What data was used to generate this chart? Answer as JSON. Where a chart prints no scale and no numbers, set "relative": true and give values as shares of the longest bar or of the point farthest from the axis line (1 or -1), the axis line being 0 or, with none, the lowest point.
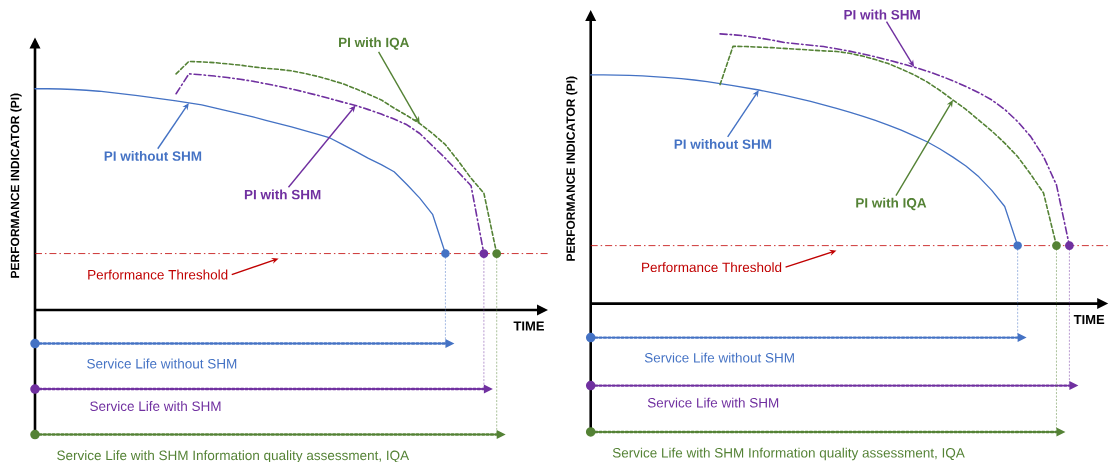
{
  "chart_data": [
    {
      "type": "line",
      "relative": true,
      "xlabel": "TIME",
      "ylabel": "PERFORMANCE INDICATOR (PI)",
      "categories": [
        null,
        null,
        null,
        null,
        null,
        null,
        null,
        null,
        null,
        null,
        null,
        null,
        null,
        null,
        null,
        null,
        null,
        null,
        null,
        null,
        null,
        null,
        null,
        null,
        null,
        null,
        null,
        null,
        null,
        null,
        null,
        null,
        null,
        null,
        null,
        null,
        null,
        null,
        null,
        null,
        null
      ],
      "series": [
        {
          "color": "#4472c4",
          "line_style": "solid",
          "values": [
            0.89,
            0.89,
            0.889,
            0.887,
            0.884,
            0.88,
            0.874,
            0.868,
            0.862,
            0.855,
            0.848,
            0.841,
            0.833,
            0.825,
            0.813,
            0.801,
            0.789,
            0.777,
            0.763,
            0.75,
            0.737,
            0.722,
            0.707,
            0.692,
            0.665,
            0.638,
            0.61,
            0.585,
            0.556,
            0.505,
            0.45,
            0.385,
            0.227,
            null,
            null,
            null,
            null,
            null,
            null,
            null,
            null
          ]
        },
        {
          "color": "#7030a0",
          "line_style": "dashdot",
          "values": [
            null,
            null,
            null,
            null,
            null,
            null,
            null,
            null,
            null,
            null,
            null,
            0.87,
            0.95,
            0.946,
            0.941,
            0.935,
            0.928,
            0.92,
            0.91,
            0.9,
            0.889,
            0.877,
            0.864,
            0.85,
            0.836,
            0.823,
            0.806,
            0.788,
            0.768,
            0.745,
            0.71,
            0.66,
            0.61,
            0.555,
            0.5,
            0.227,
            null,
            null,
            null,
            null,
            null
          ]
        },
        {
          "color": "#548235",
          "line_style": "dashed",
          "values": [
            null,
            null,
            null,
            null,
            null,
            null,
            null,
            null,
            null,
            null,
            null,
            0.95,
            1,
            0.998,
            0.995,
            0.99,
            0.985,
            0.978,
            0.972,
            0.968,
            0.962,
            0.952,
            0.94,
            0.926,
            0.91,
            0.89,
            0.868,
            0.845,
            0.812,
            0.782,
            0.75,
            0.71,
            0.665,
            0.6,
            0.53,
            0.47,
            0.227,
            null,
            null,
            null,
            null
          ]
        },
        {
          "name": "Service Life without SHM",
          "color": "#4472c4",
          "line_style": "dotted",
          "values": [
            -0.135,
            -0.135,
            -0.135,
            -0.135,
            -0.135,
            -0.135,
            -0.135,
            -0.135,
            -0.135,
            -0.135,
            -0.135,
            -0.135,
            -0.135,
            -0.135,
            -0.135,
            -0.135,
            -0.135,
            -0.135,
            -0.135,
            -0.135,
            -0.135,
            -0.135,
            -0.135,
            -0.135,
            -0.135,
            -0.135,
            -0.135,
            -0.135,
            -0.135,
            -0.135,
            -0.135,
            -0.135,
            -0.135,
            null,
            null,
            null,
            null,
            null,
            null,
            null,
            null
          ]
        },
        {
          "name": "Service Life with SHM",
          "color": "#7030a0",
          "line_style": "dotted",
          "values": [
            -0.318,
            -0.318,
            -0.318,
            -0.318,
            -0.318,
            -0.318,
            -0.318,
            -0.318,
            -0.318,
            -0.318,
            -0.318,
            -0.318,
            -0.318,
            -0.318,
            -0.318,
            -0.318,
            -0.318,
            -0.318,
            -0.318,
            -0.318,
            -0.318,
            -0.318,
            -0.318,
            -0.318,
            -0.318,
            -0.318,
            -0.318,
            -0.318,
            -0.318,
            -0.318,
            -0.318,
            -0.318,
            -0.318,
            -0.318,
            -0.318,
            -0.318,
            null,
            null,
            null,
            null,
            null
          ]
        },
        {
          "name": "Service Life with SHM Information quality assessment, IQA",
          "color": "#548235",
          "line_style": "dotted",
          "values": [
            -0.501,
            -0.501,
            -0.501,
            -0.501,
            -0.501,
            -0.501,
            -0.501,
            -0.501,
            -0.501,
            -0.501,
            -0.501,
            -0.501,
            -0.501,
            -0.501,
            -0.501,
            -0.501,
            -0.501,
            -0.501,
            -0.501,
            -0.501,
            -0.501,
            -0.501,
            -0.501,
            -0.501,
            -0.501,
            -0.501,
            -0.501,
            -0.501,
            -0.501,
            -0.501,
            -0.501,
            -0.501,
            -0.501,
            -0.501,
            -0.501,
            -0.501,
            -0.501,
            null,
            null,
            null,
            null
          ]
        }
      ],
      "annotations": [
        "PI without SHM",
        "PI with SHM",
        "PI with IQA"
      ],
      "ref_lines": [
        {
          "axis": "y",
          "value": 0.227,
          "label": "Performance Threshold",
          "color": "#c00000",
          "line_style": "dashdot"
        }
      ]
    },
    {
      "type": "line",
      "relative": true,
      "xlabel": "TIME",
      "ylabel": "PERFORMANCE INDICATOR (PI)",
      "categories": [
        null,
        null,
        null,
        null,
        null,
        null,
        null,
        null,
        null,
        null,
        null,
        null,
        null,
        null,
        null,
        null,
        null,
        null,
        null,
        null,
        null,
        null,
        null,
        null,
        null,
        null,
        null,
        null,
        null,
        null,
        null,
        null,
        null,
        null,
        null,
        null,
        null,
        null,
        null,
        null,
        null
      ],
      "series": [
        {
          "color": "#4472c4",
          "line_style": "solid",
          "values": [
            0.848,
            0.848,
            0.847,
            0.846,
            0.844,
            0.841,
            0.838,
            0.834,
            0.829,
            0.823,
            0.816,
            0.808,
            0.8,
            0.792,
            0.782,
            0.772,
            0.761,
            0.75,
            0.737,
            0.724,
            0.71,
            0.695,
            0.679,
            0.662,
            0.643,
            0.622,
            0.6,
            0.573,
            0.543,
            0.51,
            0.47,
            0.42,
            0.36,
            0.215,
            null,
            null,
            null,
            null,
            null,
            null,
            null
          ]
        },
        {
          "color": "#7030a0",
          "line_style": "dashdot",
          "values": [
            null,
            null,
            null,
            null,
            null,
            null,
            null,
            null,
            null,
            null,
            1,
            0.997,
            0.992,
            0.985,
            0.977,
            0.968,
            0.963,
            0.958,
            0.953,
            0.945,
            0.936,
            0.926,
            0.915,
            0.903,
            0.89,
            0.877,
            0.862,
            0.845,
            0.826,
            0.805,
            0.782,
            0.755,
            0.72,
            0.675,
            0.62,
            0.545,
            0.44,
            0.215,
            null,
            null,
            null
          ]
        },
        {
          "color": "#548235",
          "line_style": "dashed",
          "values": [
            null,
            null,
            null,
            null,
            null,
            null,
            null,
            null,
            null,
            null,
            0.812,
            0.954,
            0.953,
            0.951,
            0.949,
            0.946,
            0.943,
            0.94,
            0.937,
            0.935,
            0.928,
            0.918,
            0.905,
            0.89,
            0.87,
            0.848,
            0.822,
            0.79,
            0.755,
            0.72,
            0.68,
            0.64,
            0.595,
            0.545,
            0.48,
            0.41,
            0.215,
            null,
            null,
            null,
            null
          ]
        },
        {
          "name": "Service Life without SHM",
          "color": "#4472c4",
          "line_style": "dotted",
          "values": [
            -0.126,
            -0.126,
            -0.126,
            -0.126,
            -0.126,
            -0.126,
            -0.126,
            -0.126,
            -0.126,
            -0.126,
            -0.126,
            -0.126,
            -0.126,
            -0.126,
            -0.126,
            -0.126,
            -0.126,
            -0.126,
            -0.126,
            -0.126,
            -0.126,
            -0.126,
            -0.126,
            -0.126,
            -0.126,
            -0.126,
            -0.126,
            -0.126,
            -0.126,
            -0.126,
            -0.126,
            -0.126,
            -0.126,
            -0.126,
            null,
            null,
            null,
            null,
            null,
            null,
            null
          ]
        },
        {
          "name": "Service Life with SHM",
          "color": "#7030a0",
          "line_style": "dotted",
          "values": [
            -0.304,
            -0.304,
            -0.304,
            -0.304,
            -0.304,
            -0.304,
            -0.304,
            -0.304,
            -0.304,
            -0.304,
            -0.304,
            -0.304,
            -0.304,
            -0.304,
            -0.304,
            -0.304,
            -0.304,
            -0.304,
            -0.304,
            -0.304,
            -0.304,
            -0.304,
            -0.304,
            -0.304,
            -0.304,
            -0.304,
            -0.304,
            -0.304,
            -0.304,
            -0.304,
            -0.304,
            -0.304,
            -0.304,
            -0.304,
            -0.304,
            -0.304,
            -0.304,
            -0.304,
            null,
            null,
            null
          ]
        },
        {
          "name": "Service Life with SHM Information quality assessment, IQA",
          "color": "#548235",
          "line_style": "dotted",
          "values": [
            -0.476,
            -0.476,
            -0.476,
            -0.476,
            -0.476,
            -0.476,
            -0.476,
            -0.476,
            -0.476,
            -0.476,
            -0.476,
            -0.476,
            -0.476,
            -0.476,
            -0.476,
            -0.476,
            -0.476,
            -0.476,
            -0.476,
            -0.476,
            -0.476,
            -0.476,
            -0.476,
            -0.476,
            -0.476,
            -0.476,
            -0.476,
            -0.476,
            -0.476,
            -0.476,
            -0.476,
            -0.476,
            -0.476,
            -0.476,
            -0.476,
            -0.476,
            -0.476,
            null,
            null,
            null,
            null
          ]
        }
      ],
      "annotations": [
        "PI without SHM",
        "PI with SHM",
        "PI with IQA"
      ],
      "ref_lines": [
        {
          "axis": "y",
          "value": 0.215,
          "label": "Performance Threshold",
          "color": "#c00000",
          "line_style": "dashdot"
        }
      ]
    }
  ]
}
